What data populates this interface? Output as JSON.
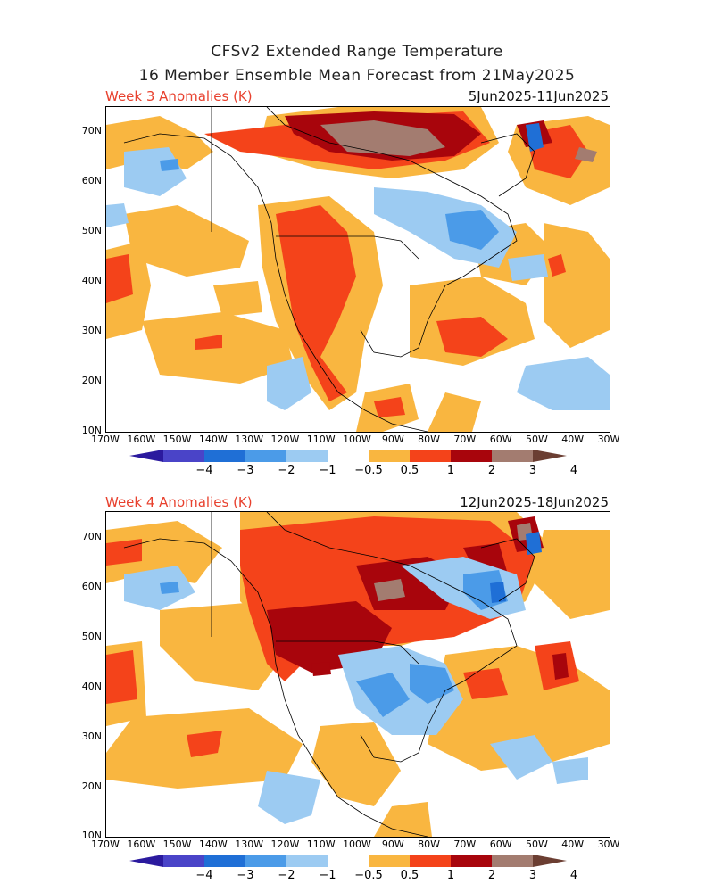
{
  "header": {
    "line1": "CFSv2 Extended Range Temperature",
    "line2": "16 Member Ensemble Mean Forecast from 21May2025"
  },
  "panels": [
    {
      "title": "Week 3 Anomalies (K)",
      "date_range": "5Jun2025-11Jun2025"
    },
    {
      "title": "Week 4 Anomalies (K)",
      "date_range": "12Jun2025-18Jun2025"
    }
  ],
  "lat_labels": [
    "70N",
    "60N",
    "50N",
    "40N",
    "30N",
    "20N",
    "10N"
  ],
  "lon_labels": [
    "170W",
    "160W",
    "150W",
    "140W",
    "130W",
    "120W",
    "110W",
    "100W",
    "90W",
    "80W",
    "70W",
    "60W",
    "50W",
    "40W",
    "30W"
  ],
  "colorbar": {
    "labels": [
      "−4",
      "−3",
      "−2",
      "−1",
      "−0.5",
      "0.5",
      "1",
      "2",
      "3",
      "4"
    ],
    "colors": [
      "#2b1a9e",
      "#4a44c8",
      "#1f6fd6",
      "#4b9be8",
      "#9ccbf2",
      "#ffffff",
      "#f9b640",
      "#f4431a",
      "#a8050c",
      "#a37c70",
      "#6b3e32"
    ]
  }
}
